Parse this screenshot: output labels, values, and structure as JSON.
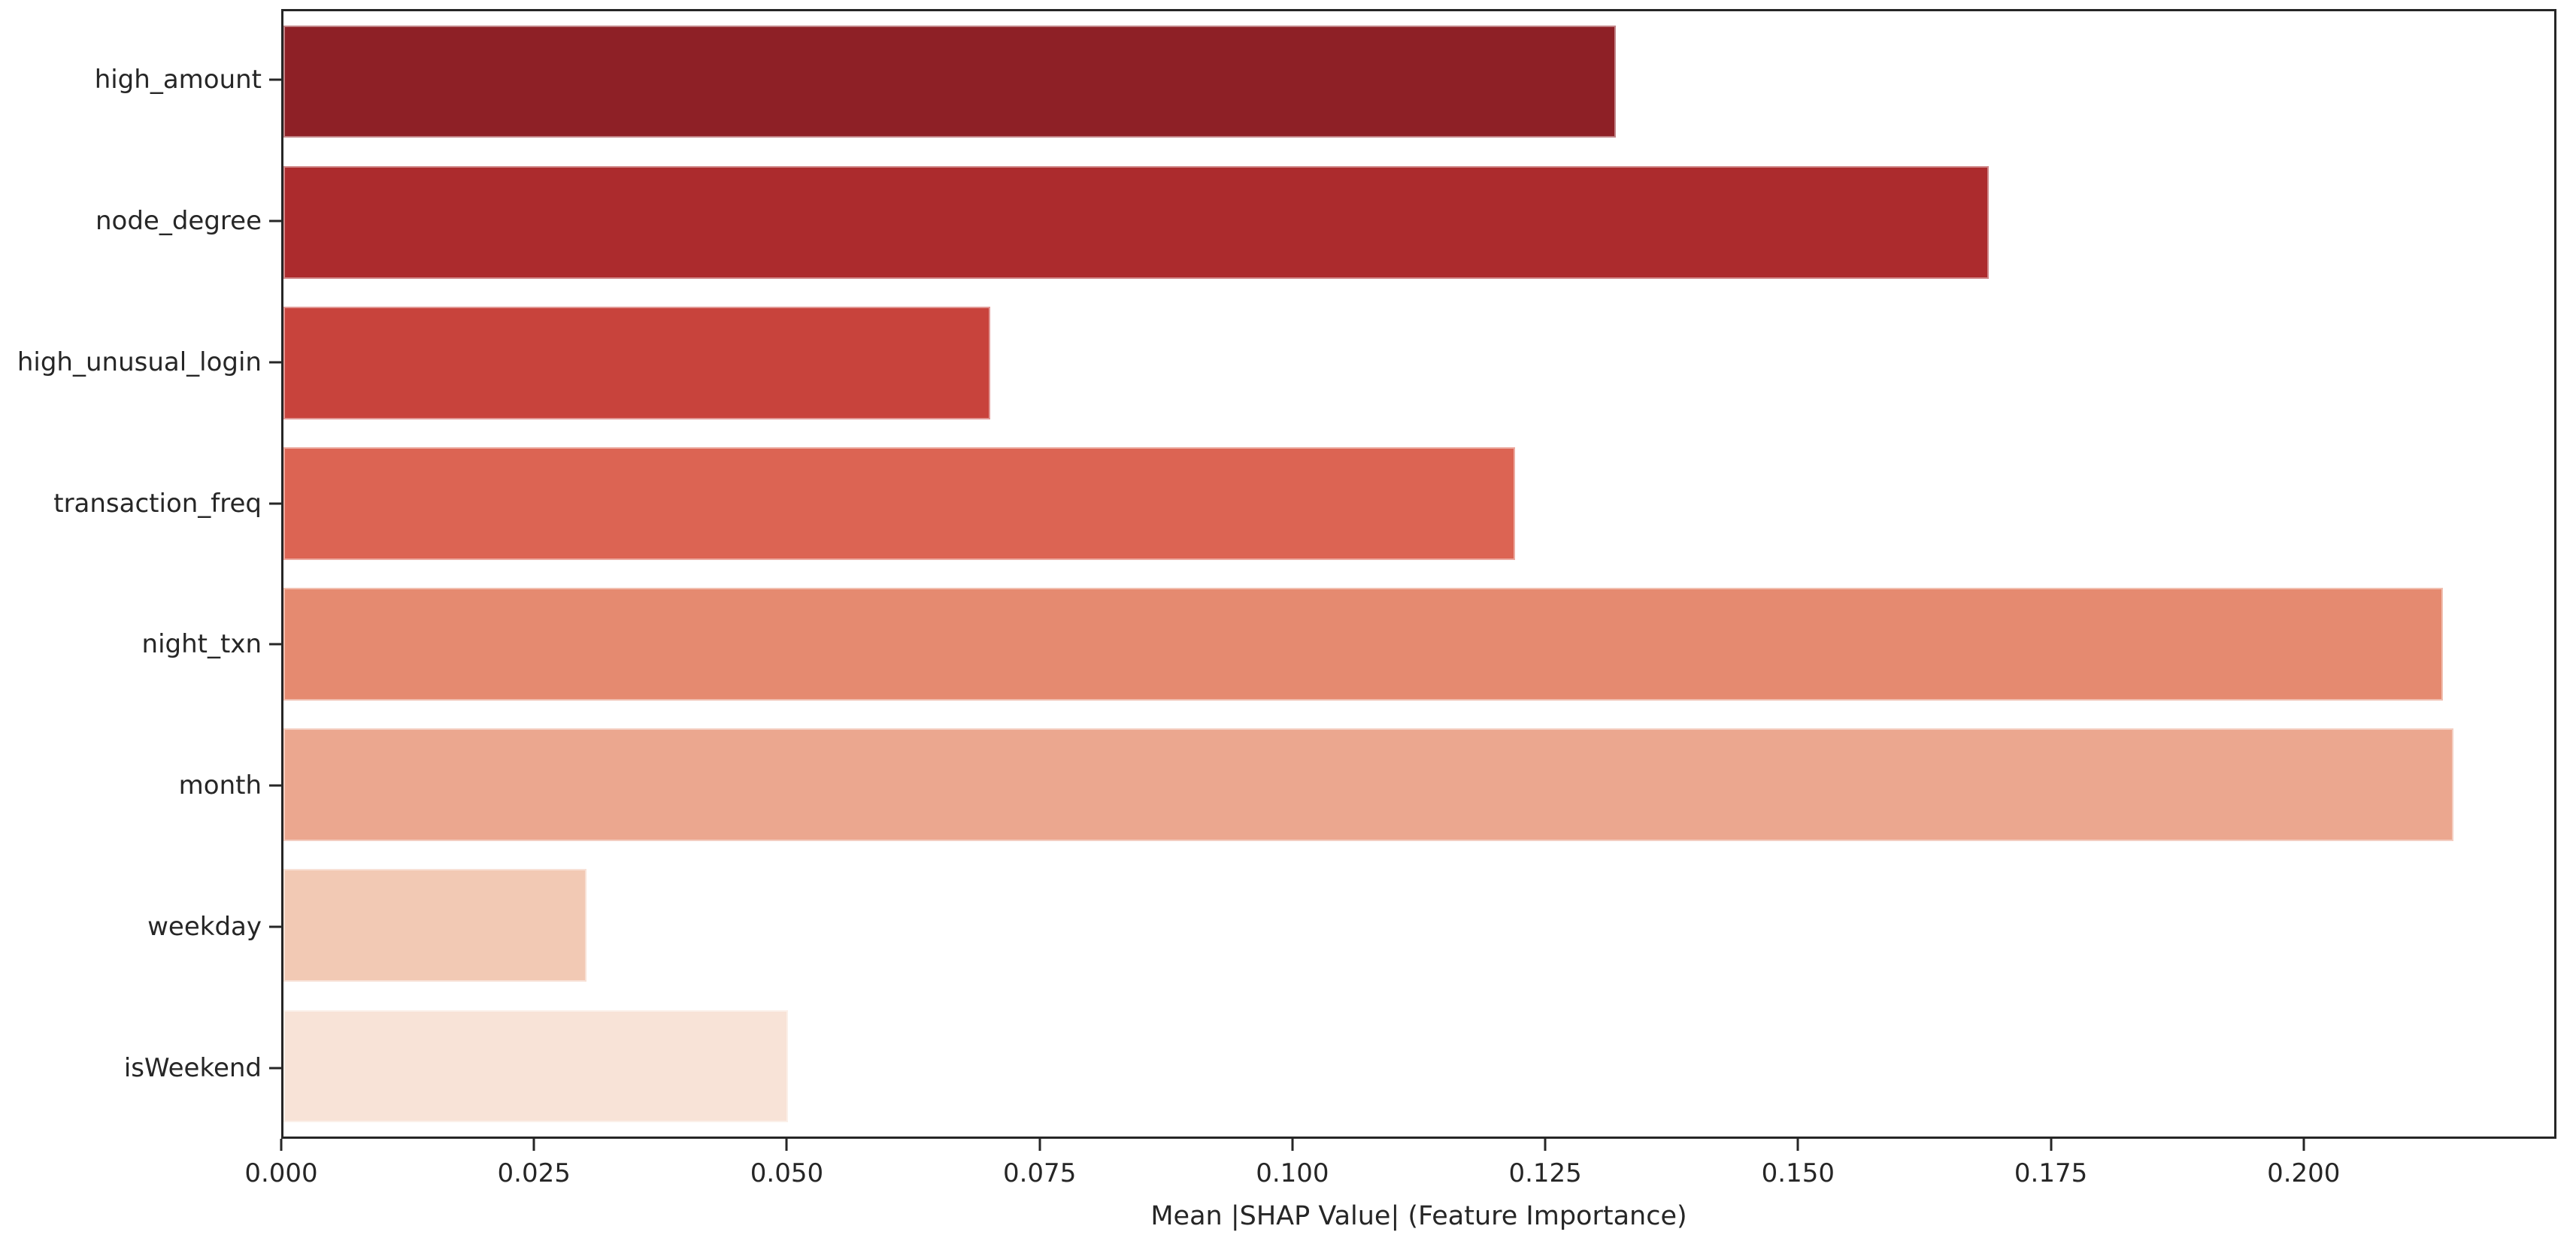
{
  "chart_data": {
    "type": "bar",
    "orientation": "horizontal",
    "title": "",
    "xlabel": "Mean |SHAP Value| (Feature Importance)",
    "ylabel": "",
    "categories": [
      "high_amount",
      "node_degree",
      "high_unusual_login",
      "transaction_freq",
      "night_txn",
      "month",
      "weekday",
      "isWeekend"
    ],
    "values": [
      0.132,
      0.169,
      0.07,
      0.122,
      0.214,
      0.215,
      0.03,
      0.05
    ],
    "bar_colors": [
      "#8e2026",
      "#ac2b2d",
      "#c8433c",
      "#dc6453",
      "#e58a70",
      "#eba78f",
      "#f2c9b4",
      "#f8e3d7"
    ],
    "xlim": [
      0,
      0.225
    ],
    "xticks": [
      0,
      0.025,
      0.05,
      0.075,
      0.1,
      0.125,
      0.15,
      0.175,
      0.2
    ],
    "xtick_labels": [
      "0.000",
      "0.025",
      "0.050",
      "0.075",
      "0.100",
      "0.125",
      "0.150",
      "0.175",
      "0.200"
    ],
    "grid": false,
    "legend": null,
    "background_color": "#ffffff",
    "spine_color": "#262626",
    "text_color": "#262626"
  }
}
